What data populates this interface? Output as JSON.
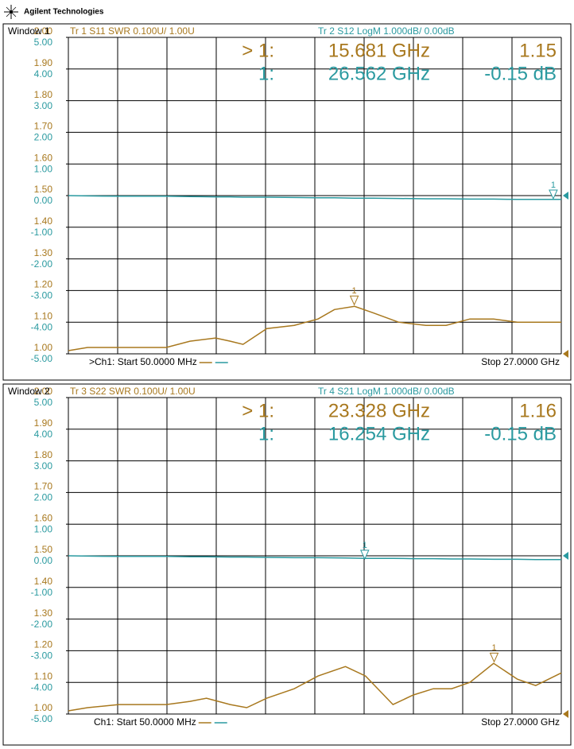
{
  "header": {
    "brand": "Agilent Technologies"
  },
  "chart_data": [
    {
      "type": "line",
      "window": "Window 1",
      "x": [
        0.05,
        1.1,
        2.8,
        5.4,
        6.7,
        8.1,
        8.9,
        9.6,
        10.9,
        12.4,
        13.7,
        14.6,
        15.7,
        16.7,
        18.1,
        19.6,
        20.7,
        22,
        23.3,
        24.6,
        27
      ],
      "xlim": [
        0.05,
        27
      ],
      "ylim": [
        1,
        2
      ],
      "yticks": [
        {
          "value": 1,
          "label": "1.00"
        },
        {
          "value": 1.1,
          "label": "1.10"
        },
        {
          "value": 1.2,
          "label": "1.20"
        },
        {
          "value": 1.3,
          "label": "1.30"
        },
        {
          "value": 1.4,
          "label": "1.40"
        },
        {
          "value": 1.5,
          "label": "1.50"
        },
        {
          "value": 1.6,
          "label": "1.60"
        },
        {
          "value": 1.7,
          "label": "1.70"
        },
        {
          "value": 1.8,
          "label": "1.80"
        },
        {
          "value": 1.9,
          "label": "1.90"
        },
        {
          "value": 2,
          "label": "2.00"
        }
      ],
      "y2lim": [
        -5,
        5
      ],
      "y2ticks": [
        {
          "value": -5,
          "label": "-5.00"
        },
        {
          "value": -4,
          "label": "-4.00"
        },
        {
          "value": -3,
          "label": "-3.00"
        },
        {
          "value": -2,
          "label": "-2.00"
        },
        {
          "value": -1,
          "label": "-1.00"
        },
        {
          "value": 0,
          "label": "0.00"
        },
        {
          "value": 1,
          "label": "1.00"
        },
        {
          "value": 2,
          "label": "2.00"
        },
        {
          "value": 3,
          "label": "3.00"
        },
        {
          "value": 4,
          "label": "4.00"
        },
        {
          "value": 5,
          "label": "5.00"
        }
      ],
      "grid": true,
      "start_label": ">Ch1: Start  50.0000 MHz",
      "stop_label": "Stop  27.0000 GHz",
      "series": [
        {
          "name": "Tr  1   S11 SWR 0.100U/  1.00U",
          "color": "#a8781e",
          "values": [
            1.01,
            1.02,
            1.02,
            1.02,
            1.04,
            1.05,
            1.04,
            1.03,
            1.08,
            1.09,
            1.11,
            1.14,
            1.15,
            1.13,
            1.1,
            1.09,
            1.09,
            1.11,
            1.11,
            1.1,
            1.1
          ],
          "marker": {
            "symbol": "1",
            "label": "> 1:",
            "x": {
              "value": 15.681,
              "label": "15.681 GHz"
            },
            "value": 1.15,
            "value_label": "1.15"
          }
        },
        {
          "name": "Tr  2   S12 LogM 1.000dB/  0.00dB",
          "color": "#2a9aa0",
          "axis": "y2",
          "values": [
            0,
            -0.01,
            -0.02,
            -0.02,
            -0.03,
            -0.04,
            -0.04,
            -0.05,
            -0.05,
            -0.06,
            -0.07,
            -0.07,
            -0.08,
            -0.08,
            -0.09,
            -0.1,
            -0.1,
            -0.11,
            -0.11,
            -0.12,
            -0.12
          ],
          "marker": {
            "symbol": "1",
            "label": "1:",
            "x": {
              "value": 26.562,
              "label": "26.562 GHz"
            },
            "value": -0.15,
            "value_label": "-0.15 dB"
          }
        }
      ]
    },
    {
      "type": "line",
      "window": "Window 2",
      "x": [
        0.05,
        1.1,
        2.8,
        5.4,
        6.7,
        7.6,
        8.9,
        9.8,
        10.9,
        12.4,
        13.7,
        15.2,
        16.3,
        17.8,
        18.9,
        20,
        21,
        22,
        23.3,
        24.6,
        25.6,
        27
      ],
      "xlim": [
        0.05,
        27
      ],
      "ylim": [
        1,
        2
      ],
      "yticks": [
        {
          "value": 1,
          "label": "1.00"
        },
        {
          "value": 1.1,
          "label": "1.10"
        },
        {
          "value": 1.2,
          "label": "1.20"
        },
        {
          "value": 1.3,
          "label": "1.30"
        },
        {
          "value": 1.4,
          "label": "1.40"
        },
        {
          "value": 1.5,
          "label": "1.50"
        },
        {
          "value": 1.6,
          "label": "1.60"
        },
        {
          "value": 1.7,
          "label": "1.70"
        },
        {
          "value": 1.8,
          "label": "1.80"
        },
        {
          "value": 1.9,
          "label": "1.90"
        },
        {
          "value": 2,
          "label": "2.00"
        }
      ],
      "y2lim": [
        -5,
        5
      ],
      "y2ticks": [
        {
          "value": -5,
          "label": "-5.00"
        },
        {
          "value": -4,
          "label": "-4.00"
        },
        {
          "value": -3,
          "label": "-3.00"
        },
        {
          "value": -2,
          "label": "-2.00"
        },
        {
          "value": -1,
          "label": "-1.00"
        },
        {
          "value": 0,
          "label": "0.00"
        },
        {
          "value": 1,
          "label": "1.00"
        },
        {
          "value": 2,
          "label": "2.00"
        },
        {
          "value": 3,
          "label": "3.00"
        },
        {
          "value": 4,
          "label": "4.00"
        },
        {
          "value": 5,
          "label": "5.00"
        }
      ],
      "grid": true,
      "start_label": "Ch1: Start  50.0000 MHz",
      "stop_label": "Stop  27.0000 GHz",
      "series": [
        {
          "name": "Tr  3   S22 SWR 0.100U/  1.00U",
          "color": "#a8781e",
          "values": [
            1.01,
            1.02,
            1.03,
            1.03,
            1.04,
            1.05,
            1.03,
            1.02,
            1.05,
            1.08,
            1.12,
            1.15,
            1.12,
            1.03,
            1.06,
            1.08,
            1.08,
            1.1,
            1.16,
            1.11,
            1.09,
            1.13
          ],
          "marker": {
            "symbol": "1",
            "label": "> 1:",
            "x": {
              "value": 23.328,
              "label": "23.328 GHz"
            },
            "value": 1.16,
            "value_label": "1.16"
          }
        },
        {
          "name": "Tr  4   S21 LogM 1.000dB/  0.00dB",
          "color": "#2a9aa0",
          "axis": "y2",
          "values": [
            0,
            -0.01,
            -0.02,
            -0.02,
            -0.03,
            -0.03,
            -0.04,
            -0.04,
            -0.05,
            -0.06,
            -0.06,
            -0.07,
            -0.08,
            -0.08,
            -0.09,
            -0.09,
            -0.1,
            -0.1,
            -0.11,
            -0.11,
            -0.12,
            -0.12
          ],
          "marker": {
            "symbol": "1",
            "label": "1:",
            "x": {
              "value": 16.254,
              "label": "16.254 GHz"
            },
            "value": -0.15,
            "value_label": "-0.15 dB"
          }
        }
      ]
    }
  ]
}
